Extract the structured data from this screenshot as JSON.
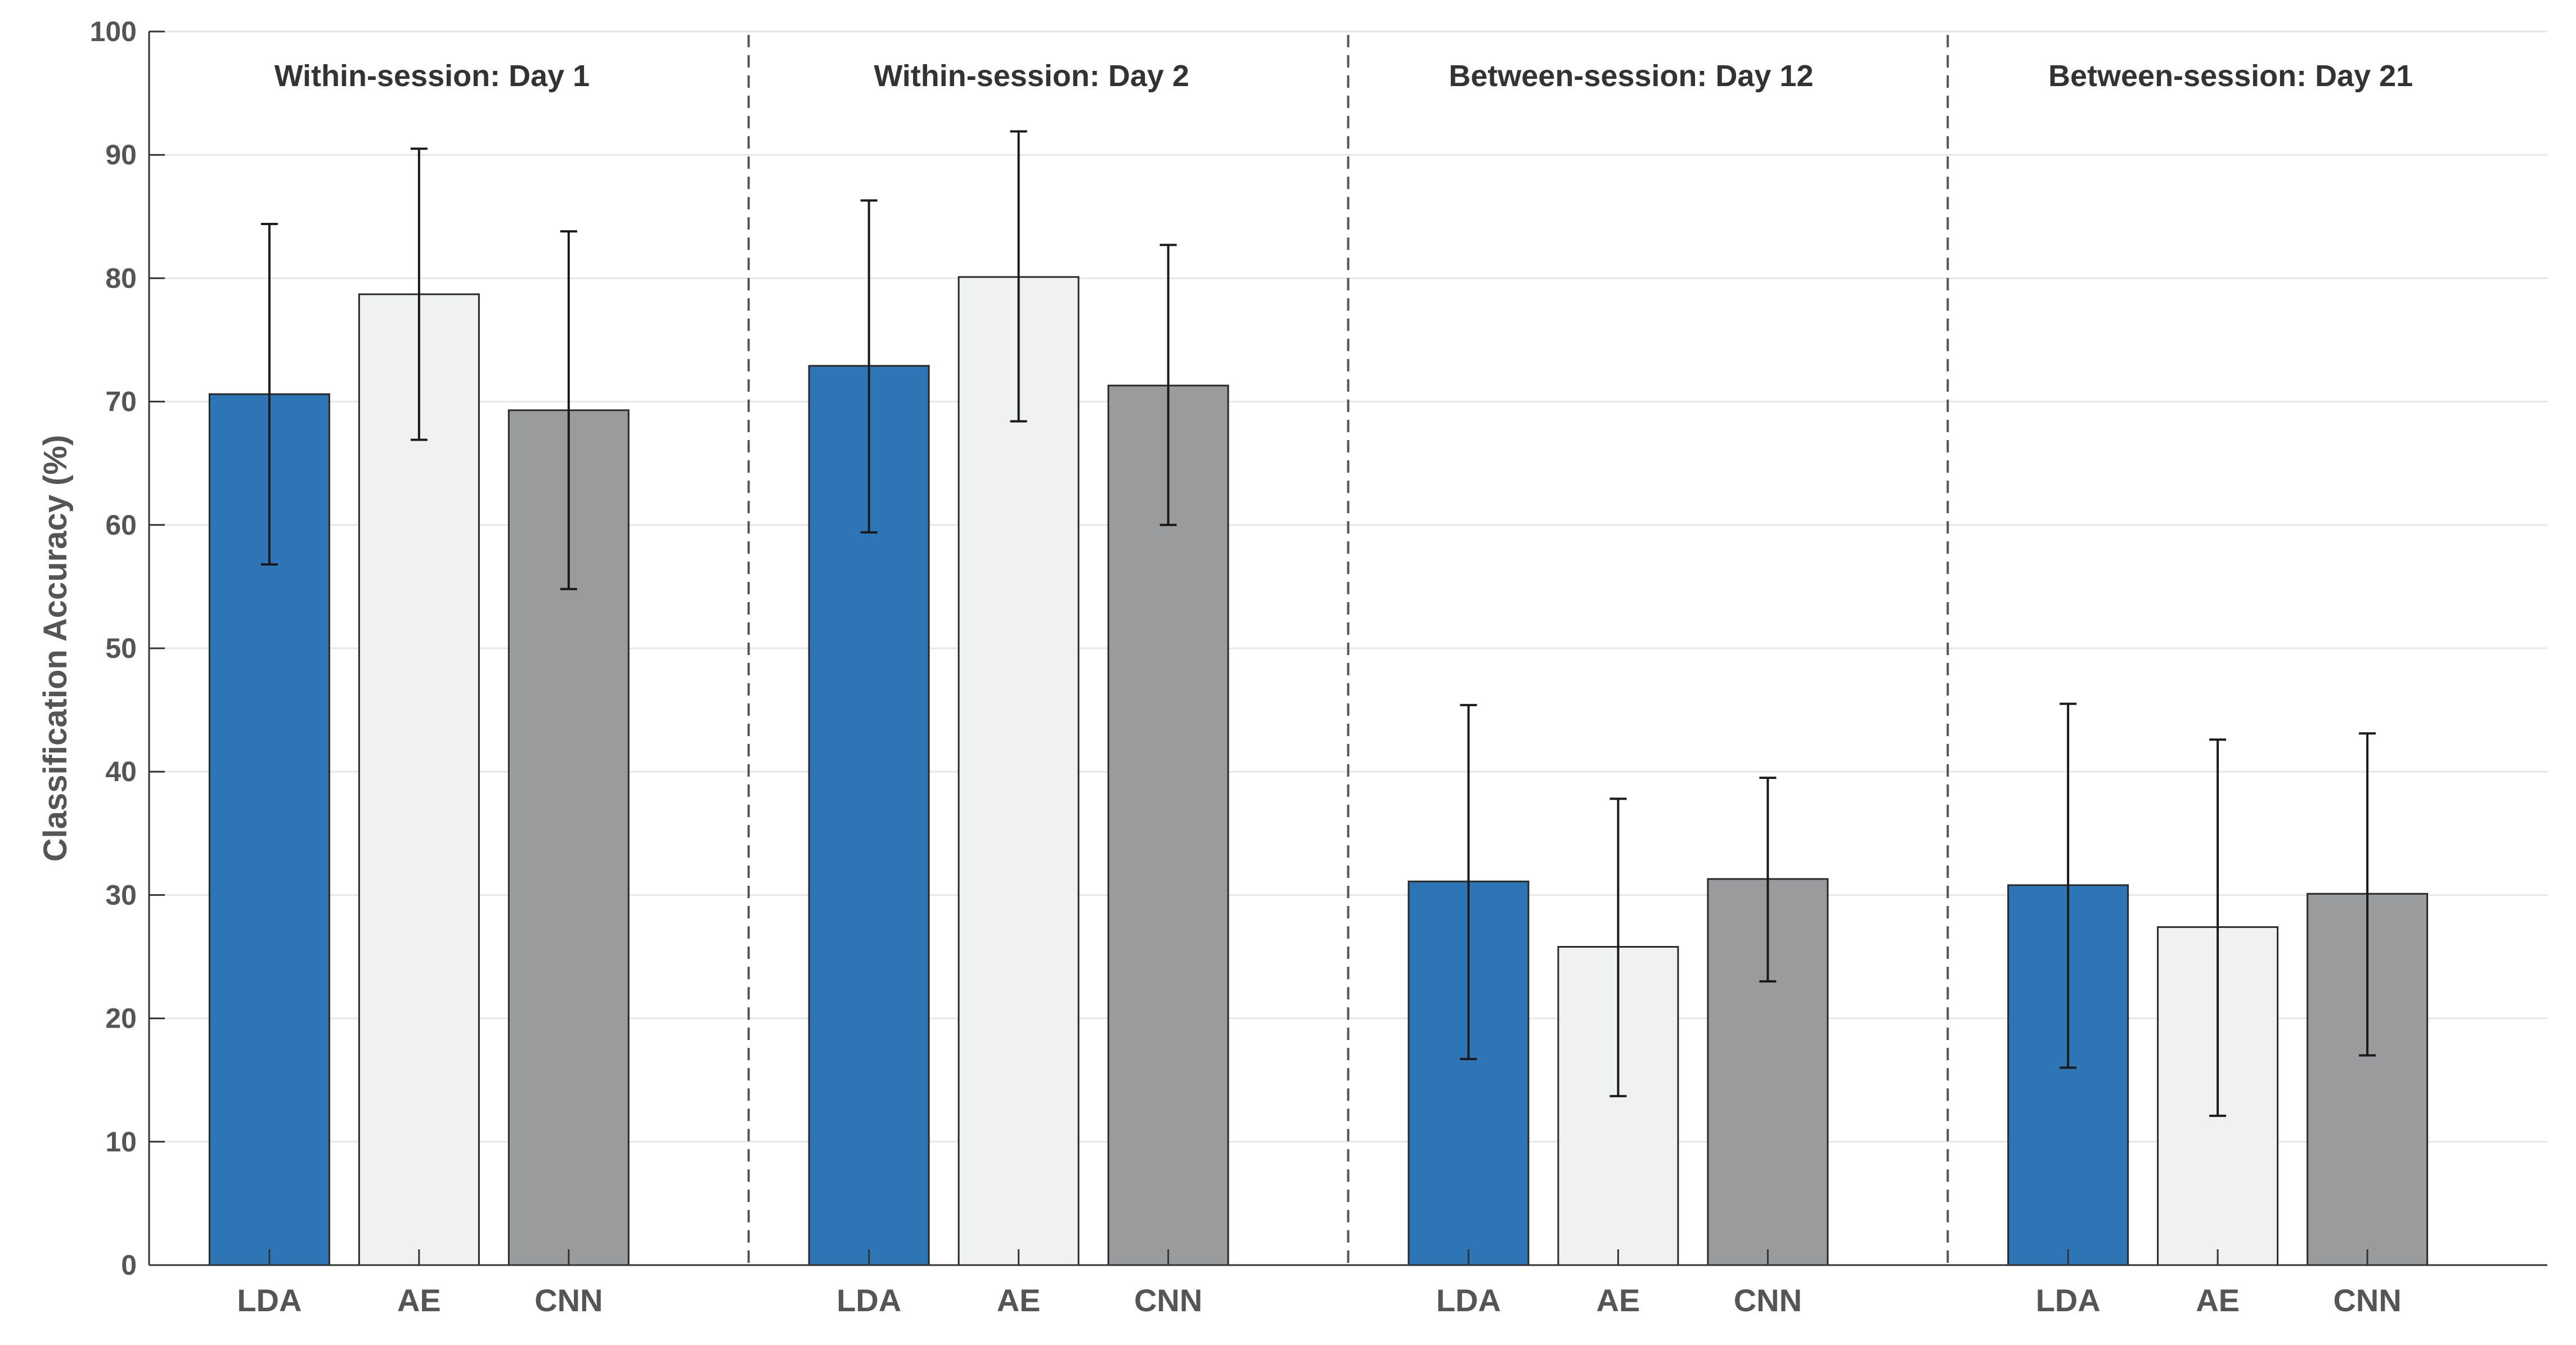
{
  "chart_data": {
    "type": "bar",
    "ylabel": "Classification Accuracy (%)",
    "xlabel": "",
    "ylim": [
      0,
      100
    ],
    "yticks": [
      0,
      10,
      20,
      30,
      40,
      50,
      60,
      70,
      80,
      90,
      100
    ],
    "grid": true,
    "colors": {
      "LDA": "#2e75b6",
      "AE": "#f0f2f1",
      "CNN": "#9a9b9d",
      "grid": "#e6e6e6",
      "axis": "#333333",
      "errorbar": "#1a1a1a",
      "separator": "#555555"
    },
    "groups": [
      {
        "title": "Within-session: Day 1",
        "bars": [
          {
            "category": "LDA",
            "value": 70.6,
            "err_low": 56.8,
            "err_high": 84.4
          },
          {
            "category": "AE",
            "value": 78.7,
            "err_low": 66.9,
            "err_high": 90.5
          },
          {
            "category": "CNN",
            "value": 69.3,
            "err_low": 54.8,
            "err_high": 83.8
          }
        ]
      },
      {
        "title": "Within-session: Day 2",
        "bars": [
          {
            "category": "LDA",
            "value": 72.9,
            "err_low": 59.4,
            "err_high": 86.3
          },
          {
            "category": "AE",
            "value": 80.1,
            "err_low": 68.4,
            "err_high": 91.9
          },
          {
            "category": "CNN",
            "value": 71.3,
            "err_low": 60.0,
            "err_high": 82.7
          }
        ]
      },
      {
        "title": "Between-session: Day 12",
        "bars": [
          {
            "category": "LDA",
            "value": 31.1,
            "err_low": 16.7,
            "err_high": 45.4
          },
          {
            "category": "AE",
            "value": 25.8,
            "err_low": 13.7,
            "err_high": 37.8
          },
          {
            "category": "CNN",
            "value": 31.3,
            "err_low": 23.0,
            "err_high": 39.5
          }
        ]
      },
      {
        "title": "Between-session: Day 21",
        "bars": [
          {
            "category": "LDA",
            "value": 30.8,
            "err_low": 16.0,
            "err_high": 45.5
          },
          {
            "category": "AE",
            "value": 27.4,
            "err_low": 12.1,
            "err_high": 42.6
          },
          {
            "category": "CNN",
            "value": 30.1,
            "err_low": 17.0,
            "err_high": 43.1
          }
        ]
      }
    ]
  }
}
